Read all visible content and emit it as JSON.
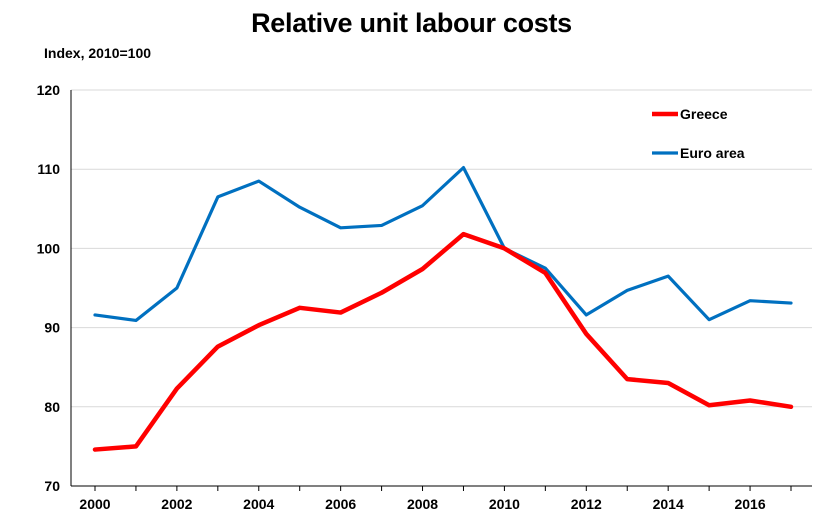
{
  "chart_data": {
    "type": "line",
    "title": "Relative unit labour costs",
    "ylabel": "Index, 2010=100",
    "xlabel": "",
    "x": [
      2000,
      2001,
      2002,
      2003,
      2004,
      2005,
      2006,
      2007,
      2008,
      2009,
      2010,
      2011,
      2012,
      2013,
      2014,
      2015,
      2016,
      2017
    ],
    "xticks": [
      "2000",
      "2002",
      "2004",
      "2006",
      "2008",
      "2010",
      "2012",
      "2014",
      "2016"
    ],
    "ylim": [
      70,
      120
    ],
    "yticks": [
      "70",
      "80",
      "90",
      "100",
      "110",
      "120"
    ],
    "grid": true,
    "legend_position": "top-right",
    "series": [
      {
        "name": "Greece",
        "color": "#ff0000",
        "values": [
          74.6,
          75.0,
          82.3,
          87.6,
          90.3,
          92.5,
          91.9,
          94.4,
          97.4,
          101.8,
          100.0,
          96.9,
          89.2,
          83.5,
          83.0,
          80.2,
          80.8,
          80.0
        ]
      },
      {
        "name": "Euro area",
        "color": "#0070c0",
        "values": [
          91.6,
          90.9,
          95.0,
          106.5,
          108.5,
          105.2,
          102.6,
          102.9,
          105.4,
          110.2,
          100.0,
          97.5,
          91.6,
          94.7,
          96.5,
          91.0,
          93.4,
          93.1
        ]
      }
    ]
  }
}
